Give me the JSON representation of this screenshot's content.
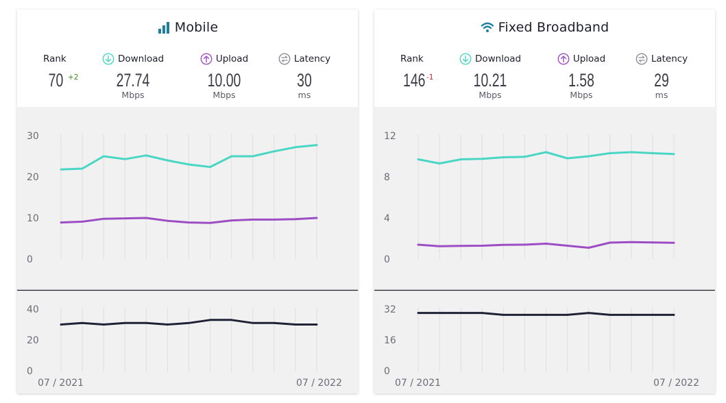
{
  "colors": {
    "download": "#49d6c4",
    "upload": "#9c4dc4",
    "latency": "#1f2236",
    "rank_up": "#3a8f1f",
    "rank_down": "#c0242d",
    "title_icon": "#1b7fa0"
  },
  "cards": [
    {
      "title": "Mobile",
      "icon": "signal-bars-icon",
      "rank": {
        "label": "Rank",
        "value": "70",
        "change": "+2"
      },
      "download": {
        "label": "Download",
        "value": "27.74",
        "unit": "Mbps"
      },
      "upload": {
        "label": "Upload",
        "value": "10.00",
        "unit": "Mbps"
      },
      "latency": {
        "label": "Latency",
        "value": "30",
        "unit": "ms"
      }
    },
    {
      "title": "Fixed Broadband",
      "icon": "wifi-icon",
      "rank": {
        "label": "Rank",
        "value": "146",
        "change": "-1"
      },
      "download": {
        "label": "Download",
        "value": "10.21",
        "unit": "Mbps"
      },
      "upload": {
        "label": "Upload",
        "value": "1.58",
        "unit": "Mbps"
      },
      "latency": {
        "label": "Latency",
        "value": "29",
        "unit": "ms"
      }
    }
  ],
  "chart_data": [
    {
      "type": "line",
      "panel": "Mobile speeds",
      "x_start_label": "07 / 2021",
      "x_end_label": "07 / 2022",
      "ylim": [
        0,
        30
      ],
      "yticks": [
        0,
        10,
        20,
        30
      ],
      "grid": true,
      "series": [
        {
          "name": "Download",
          "values": [
            21.8,
            22.0,
            25.0,
            24.3,
            25.2,
            24.0,
            23.0,
            22.4,
            25.0,
            25.0,
            26.2,
            27.2,
            27.74
          ]
        },
        {
          "name": "Upload",
          "values": [
            8.9,
            9.1,
            9.8,
            9.9,
            10.0,
            9.3,
            8.9,
            8.8,
            9.4,
            9.6,
            9.6,
            9.7,
            10.0
          ]
        }
      ]
    },
    {
      "type": "line",
      "panel": "Mobile latency",
      "ylim": [
        0,
        40
      ],
      "yticks": [
        0,
        20,
        40
      ],
      "grid": true,
      "series": [
        {
          "name": "Latency",
          "values": [
            30,
            31,
            30,
            31,
            31,
            30,
            31,
            33,
            33,
            31,
            31,
            30,
            30
          ]
        }
      ]
    },
    {
      "type": "line",
      "panel": "Fixed Broadband speeds",
      "x_start_label": "07 / 2021",
      "x_end_label": "07 / 2022",
      "ylim": [
        0,
        12
      ],
      "yticks": [
        0,
        4,
        8,
        12
      ],
      "grid": true,
      "series": [
        {
          "name": "Download",
          "values": [
            9.7,
            9.3,
            9.7,
            9.75,
            9.9,
            9.95,
            10.4,
            9.8,
            10.0,
            10.3,
            10.4,
            10.3,
            10.21
          ]
        },
        {
          "name": "Upload",
          "values": [
            1.4,
            1.25,
            1.28,
            1.3,
            1.38,
            1.4,
            1.5,
            1.3,
            1.1,
            1.6,
            1.65,
            1.62,
            1.58
          ]
        }
      ]
    },
    {
      "type": "line",
      "panel": "Fixed Broadband latency",
      "ylim": [
        0,
        32
      ],
      "yticks": [
        0,
        16,
        32
      ],
      "grid": true,
      "series": [
        {
          "name": "Latency",
          "values": [
            30,
            30,
            30,
            30,
            29,
            29,
            29,
            29,
            30,
            29,
            29,
            29,
            29
          ]
        }
      ]
    }
  ]
}
